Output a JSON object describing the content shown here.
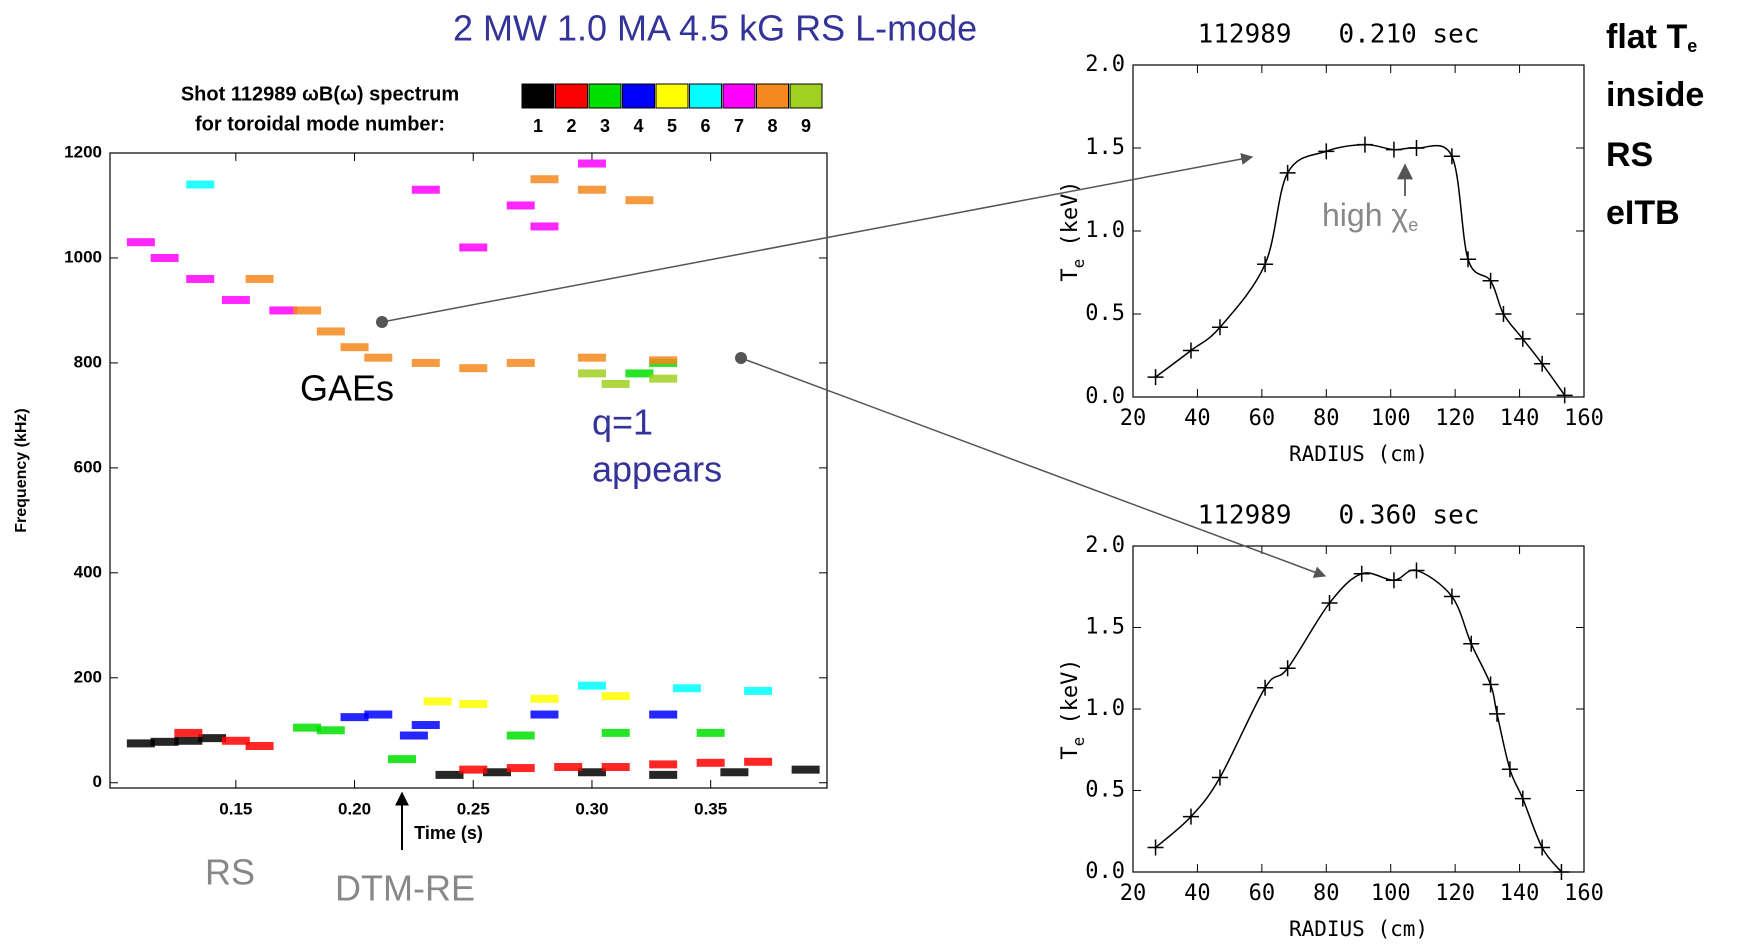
{
  "slide": {
    "title": "2 MW 1.0 MA 4.5 kG  RS L-mode",
    "gaes": "GAEs",
    "q1_line1": "q=1",
    "q1_line2": "appears",
    "rs": "RS",
    "dtm": "DTM-RE",
    "high_chi": "high χ",
    "high_chi_sub": "e",
    "flat_line1": "flat T",
    "flat_line1_sub": "e",
    "flat_line2": "inside",
    "flat_line3": "RS",
    "flat_line4": "eITB"
  },
  "chart_data": [
    {
      "type": "scatter",
      "title": "Shot 112989 ωB(ω) spectrum",
      "subtitle": "for toroidal mode number:",
      "xlabel": "Time (s)",
      "ylabel": "Frequency (kHz)",
      "xlim": [
        0.097,
        0.399
      ],
      "xticks": [
        0.15,
        {
          "value": 0.2,
          "label": "0.20"
        },
        0.25,
        {
          "value": 0.3,
          "label": "0.30"
        },
        0.35
      ],
      "ylim": [
        -10,
        1200
      ],
      "yticks": [
        0,
        200,
        400,
        600,
        800,
        1000,
        1200
      ],
      "series": [
        {
          "name": "1",
          "color": "#000000",
          "x": [
            0.11,
            0.12,
            0.13,
            0.14,
            0.24,
            0.26,
            0.3,
            0.33,
            0.36,
            0.39
          ],
          "values": [
            75,
            78,
            80,
            85,
            15,
            20,
            20,
            15,
            20,
            25
          ]
        },
        {
          "name": "2",
          "color": "#ff0000",
          "x": [
            0.13,
            0.15,
            0.16,
            0.25,
            0.27,
            0.29,
            0.31,
            0.33,
            0.35,
            0.37
          ],
          "values": [
            95,
            80,
            70,
            25,
            28,
            30,
            30,
            35,
            38,
            40
          ]
        },
        {
          "name": "3",
          "color": "#00e000",
          "x": [
            0.18,
            0.19,
            0.22,
            0.27,
            0.31,
            0.35,
            0.32,
            0.33
          ],
          "values": [
            105,
            100,
            45,
            90,
            95,
            95,
            780,
            800
          ]
        },
        {
          "name": "4",
          "color": "#0000ff",
          "x": [
            0.2,
            0.21,
            0.225,
            0.23,
            0.28,
            0.33
          ],
          "values": [
            125,
            130,
            90,
            110,
            130,
            130
          ]
        },
        {
          "name": "5",
          "color": "#ffff00",
          "x": [
            0.235,
            0.25,
            0.28,
            0.31
          ],
          "values": [
            155,
            150,
            160,
            165
          ]
        },
        {
          "name": "6",
          "color": "#00ffff",
          "x": [
            0.3,
            0.34,
            0.37,
            0.135
          ],
          "values": [
            185,
            180,
            175,
            1140
          ]
        },
        {
          "name": "7",
          "color": "#ff00ff",
          "x": [
            0.11,
            0.12,
            0.135,
            0.15,
            0.17,
            0.23,
            0.25,
            0.27,
            0.28,
            0.3
          ],
          "values": [
            1030,
            1000,
            960,
            920,
            900,
            1130,
            1020,
            1100,
            1060,
            1180
          ]
        },
        {
          "name": "8",
          "color": "#f5881f",
          "x": [
            0.16,
            0.18,
            0.19,
            0.2,
            0.21,
            0.23,
            0.25,
            0.27,
            0.3,
            0.33,
            0.28,
            0.3,
            0.32
          ],
          "values": [
            960,
            900,
            860,
            830,
            810,
            800,
            790,
            800,
            810,
            805,
            1150,
            1130,
            1110
          ]
        },
        {
          "name": "9",
          "color": "#a0d020",
          "x": [
            0.3,
            0.31,
            0.33
          ],
          "values": [
            780,
            760,
            770
          ]
        }
      ]
    },
    {
      "type": "line",
      "title": "112989   0.210 sec",
      "xlabel": "RADIUS (cm)",
      "ylabel_main": "T",
      "ylabel_sub": "e",
      "ylabel_unit": "(keV)",
      "xlim": [
        20,
        160
      ],
      "xticks": [
        20,
        40,
        60,
        80,
        100,
        120,
        140,
        160
      ],
      "ylim": [
        0,
        2
      ],
      "yticks": [
        {
          "value": 0,
          "label": "0.0"
        },
        0.5,
        {
          "value": 1,
          "label": "1.0"
        },
        1.5,
        {
          "value": 2,
          "label": "2.0"
        }
      ],
      "color": "#000000",
      "x": [
        27,
        38,
        47,
        61,
        68,
        80,
        92,
        101,
        108,
        119,
        124,
        131,
        135,
        141,
        147,
        154
      ],
      "values": [
        0.12,
        0.28,
        0.42,
        0.8,
        1.35,
        1.48,
        1.52,
        1.49,
        1.5,
        1.45,
        0.83,
        0.7,
        0.5,
        0.35,
        0.2,
        0.01
      ]
    },
    {
      "type": "line",
      "title": "112989   0.360 sec",
      "xlabel": "RADIUS (cm)",
      "ylabel_main": "T",
      "ylabel_sub": "e",
      "ylabel_unit": "(keV)",
      "xlim": [
        20,
        160
      ],
      "xticks": [
        20,
        40,
        60,
        80,
        100,
        120,
        140,
        160
      ],
      "ylim": [
        0,
        2
      ],
      "yticks": [
        {
          "value": 0,
          "label": "0.0"
        },
        0.5,
        {
          "value": 1,
          "label": "1.0"
        },
        1.5,
        {
          "value": 2,
          "label": "2.0"
        }
      ],
      "color": "#000000",
      "x": [
        27,
        38,
        47,
        61,
        68,
        81,
        91,
        101,
        108,
        119,
        125,
        131,
        133,
        137,
        141,
        147,
        153
      ],
      "values": [
        0.15,
        0.34,
        0.58,
        1.13,
        1.25,
        1.65,
        1.83,
        1.79,
        1.85,
        1.69,
        1.4,
        1.15,
        0.97,
        0.63,
        0.45,
        0.15,
        0
      ]
    }
  ]
}
